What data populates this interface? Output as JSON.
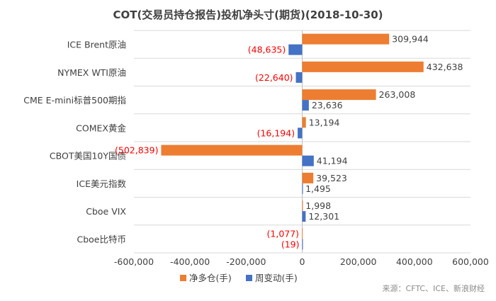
{
  "chart_data": {
    "type": "bar",
    "orientation": "horizontal",
    "title": "COT(交易员持仓报告)投机净头寸(期货)(2018-10-30)",
    "categories": [
      "ICE Brent原油",
      "NYMEX WTI原油",
      "CME E-mini标普500期指",
      "COMEX黄金",
      "CBOT美国10Y国债",
      "ICE美元指数",
      "Cboe VIX",
      "Cboe比特币"
    ],
    "series": [
      {
        "name": "净多仓(手)",
        "color": "#ED7D31",
        "values": [
          309944,
          432638,
          263008,
          13194,
          -502839,
          39523,
          1998,
          -1077
        ],
        "labels": [
          "309,944",
          "432,638",
          "263,008",
          "13,194",
          "(502,839)",
          "39,523",
          "1,998",
          "(1,077)"
        ]
      },
      {
        "name": "周变动(手)",
        "color": "#4472C4",
        "values": [
          -48635,
          -22640,
          23636,
          -16194,
          41194,
          1495,
          12301,
          -19
        ],
        "labels": [
          "(48,635)",
          "(22,640)",
          "23,636",
          "(16,194)",
          "41,194",
          "1,495",
          "12,301",
          "(19)"
        ]
      }
    ],
    "xlim": [
      -600000,
      600000
    ],
    "x_ticks": [
      -600000,
      -400000,
      -200000,
      0,
      200000,
      400000,
      600000
    ],
    "x_tick_labels": [
      "-600,000",
      "-400,000",
      "-200,000",
      "0",
      "200,000",
      "400,000",
      "600,000"
    ],
    "legend_position": "bottom",
    "grid": "horizontal category dividers",
    "positive_label_color": "#404040",
    "negative_label_color": "#FF0000"
  },
  "source_text": "来源：CFTC、ICE、新浪财经"
}
